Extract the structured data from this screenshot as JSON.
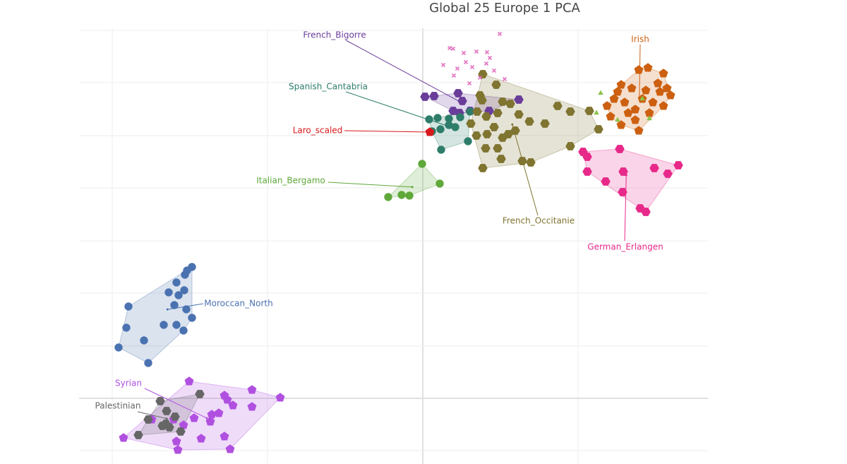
{
  "chart_data": {
    "type": "scatter",
    "title": "Global 25 Europe 1 PCA",
    "xlim": [
      112,
      1003
    ],
    "ylim": [
      5,
      653
    ],
    "xticks": [
      159,
      379,
      599,
      819
    ],
    "yticks": [
      19,
      93,
      167,
      242,
      316,
      391,
      465,
      540,
      614
    ],
    "xzero": 599,
    "yzero": 93,
    "grid": true,
    "series": [
      {
        "name": "French_Bigorre",
        "color": "#6a3d9a",
        "symbol": "hexagon",
        "x": [
          602,
          615,
          649,
          642,
          655,
          651,
          666,
          735,
          693
        ],
        "values": [
          520,
          521,
          525,
          500,
          514,
          497,
          500,
          516,
          500
        ]
      },
      {
        "name": "Spanish_Cantabria",
        "color": "#2e7d6b",
        "symbol": "circle",
        "x": [
          608,
          620,
          636,
          652,
          645,
          624,
          636,
          625,
          663,
          666,
          612
        ],
        "values": [
          488,
          490,
          489,
          491,
          477,
          474,
          480,
          445,
          457,
          499,
          471
        ]
      },
      {
        "name": "Laro_scaled",
        "color": "#d7191c",
        "symbol": "pentagon",
        "x": [
          609
        ],
        "values": [
          470
        ]
      },
      {
        "name": "Italian_Bergamo",
        "color": "#5fa83a",
        "symbol": "circle",
        "x": [
          598,
          623,
          550,
          569,
          580
        ],
        "values": [
          425,
          397,
          378,
          381,
          380
        ]
      },
      {
        "name": "French_Occitanie",
        "color": "#7f7430",
        "symbol": "hexagon",
        "x": [
          684,
          703,
          680,
          683,
          712,
          676,
          705,
          723,
          735,
          790,
          808,
          835,
          848,
          808,
          772,
          750,
          689,
          700,
          690,
          712,
          705,
          730,
          688,
          675,
          710,
          740,
          752,
          684,
          667,
          720
        ],
        "values": [
          552,
          537,
          522,
          515,
          513,
          499,
          497,
          510,
          495,
          507,
          499,
          500,
          474,
          450,
          482,
          485,
          492,
          477,
          467,
          462,
          447,
          472,
          447,
          465,
          432,
          429,
          427,
          419,
          482,
          467
        ]
      },
      {
        "name": "Irish",
        "color": "#cc6010",
        "symbol": "pentagon",
        "x": [
          905,
          918,
          940,
          932,
          950,
          940,
          920,
          905,
          880,
          865,
          860,
          875,
          895,
          910,
          900,
          925,
          885,
          890,
          935,
          915,
          880,
          870,
          900,
          945
        ],
        "values": [
          558,
          561,
          553,
          539,
          522,
          507,
          497,
          472,
          480,
          492,
          507,
          527,
          532,
          517,
          502,
          512,
          512,
          497,
          527,
          529,
          537,
          517,
          487,
          532
        ]
      },
      {
        "color": "#8bc34a",
        "symbol": "triangle",
        "x": [
          851,
          845,
          875,
          920,
          910
        ],
        "values": [
          525,
          497,
          487,
          489,
          517
        ]
      },
      {
        "color": "#e377c2",
        "symbol": "x",
        "x": [
          708,
          637,
          657,
          675,
          690,
          694,
          628,
          648,
          643,
          669,
          689,
          715,
          680,
          665,
          660,
          700,
          642
        ],
        "values": [
          609,
          589,
          582,
          584,
          583,
          575,
          565,
          560,
          550,
          562,
          567,
          545,
          547,
          539,
          569,
          557,
          588
        ]
      },
      {
        "name": "German_Erlangen",
        "color": "#e7298a",
        "symbol": "hexagon",
        "x": [
          826,
          832,
          878,
          961,
          927,
          946,
          883,
          858,
          832,
          882,
          907,
          915
        ],
        "values": [
          442,
          435,
          446,
          423,
          419,
          411,
          414,
          400,
          414,
          385,
          362,
          357
        ]
      },
      {
        "name": "Moroccan_North",
        "color": "#4a72b0",
        "symbol": "circle",
        "x": [
          272,
          265,
          262,
          250,
          261,
          239,
          253,
          182,
          264,
          247,
          272,
          232,
          250,
          260,
          179,
          204,
          168,
          210
        ],
        "values": [
          279,
          274,
          268,
          257,
          246,
          243,
          239,
          223,
          219,
          225,
          207,
          197,
          197,
          189,
          193,
          175,
          165,
          143
        ]
      },
      {
        "name": "Syrian",
        "color": "#b050e0",
        "symbol": "pentagon",
        "x": [
          268,
          318,
          322,
          357,
          397,
          330,
          357,
          310,
          275,
          246,
          260,
          298,
          175,
          215,
          250,
          285,
          318,
          326,
          252,
          300
        ],
        "values": [
          117,
          97,
          91,
          105,
          94,
          83,
          81,
          72,
          65,
          63,
          55,
          60,
          37,
          63,
          32,
          36,
          39,
          21,
          20,
          70
        ]
      },
      {
        "name": "Palestinian",
        "color": "#666666",
        "symbol": "hexagon",
        "x": [
          283,
          227,
          236,
          210,
          235,
          240,
          230,
          256,
          196,
          248
        ],
        "values": [
          99,
          89,
          75,
          63,
          57,
          52,
          54,
          46,
          41,
          67
        ]
      }
    ]
  }
}
